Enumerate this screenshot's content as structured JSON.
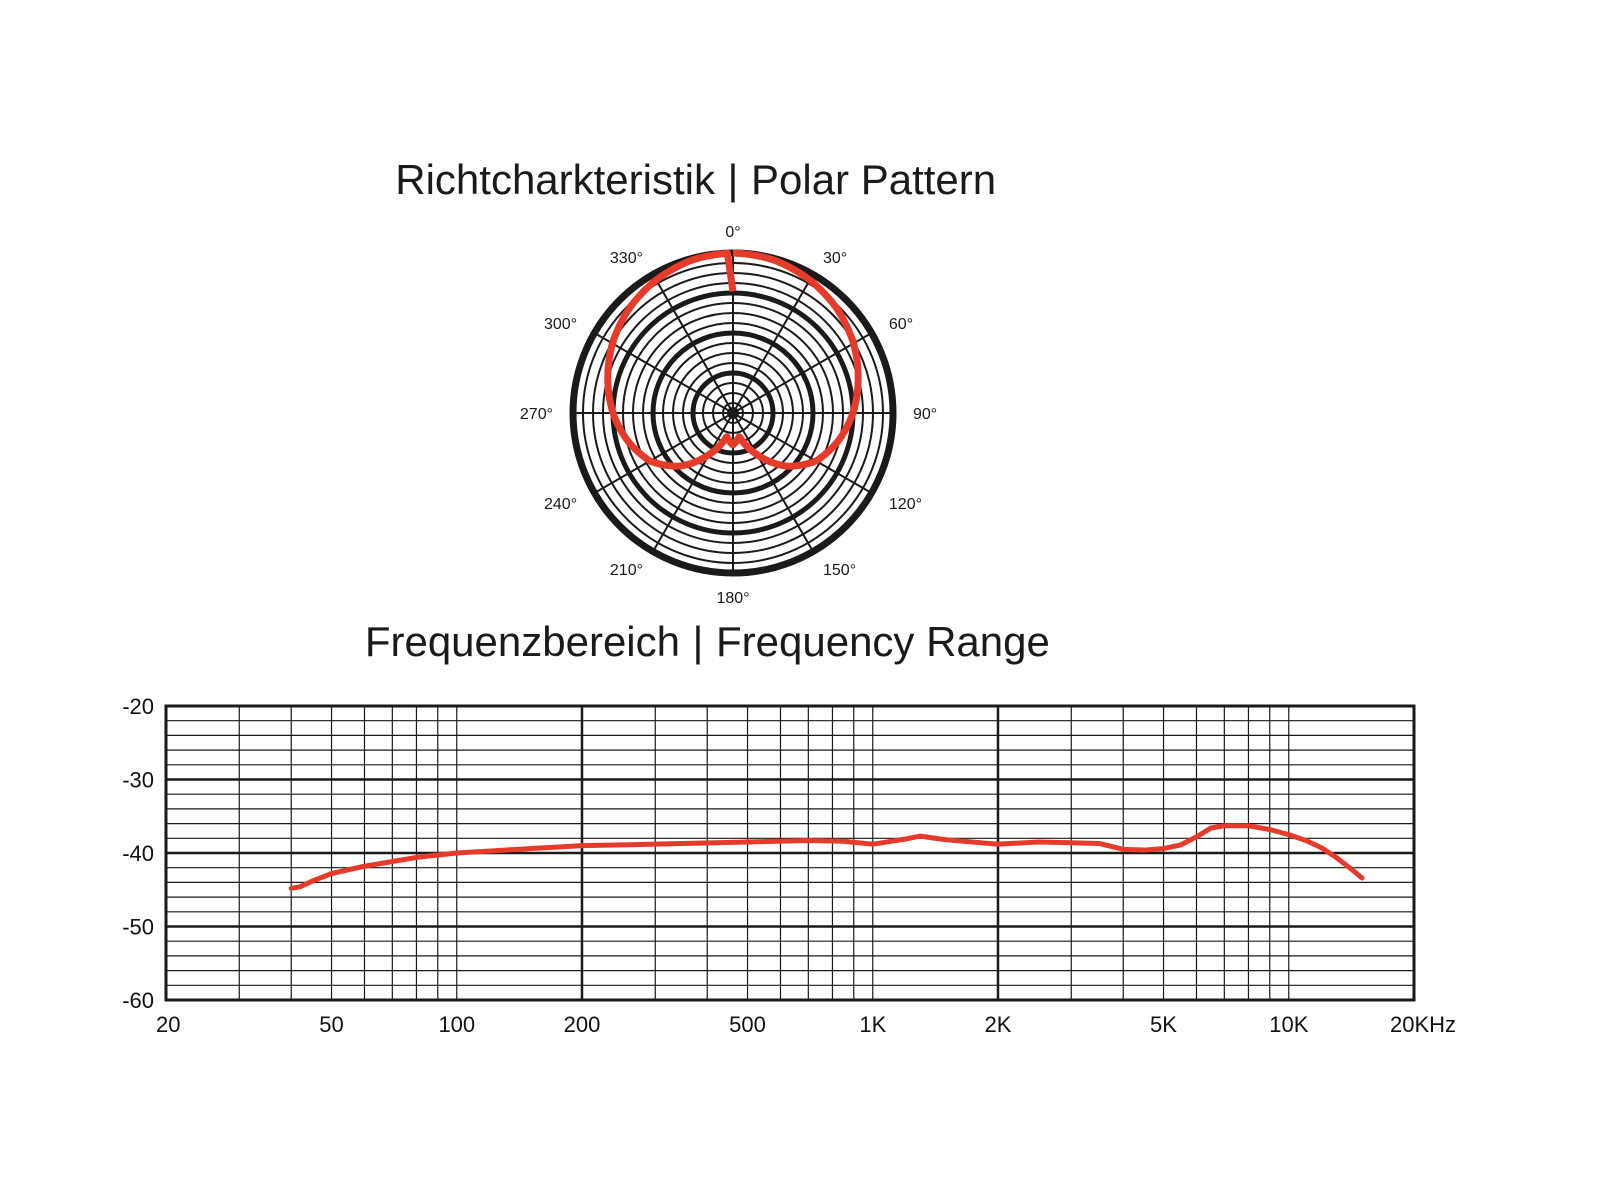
{
  "colors": {
    "curve": "#e63a2b",
    "grid": "#1a1a1a",
    "background": "#ffffff"
  },
  "polar": {
    "title_de": "Richtcharkteristik",
    "title_en": "Polar Pattern",
    "separator": "|"
  },
  "frequency": {
    "title_de": "Frequenzbereich",
    "title_en": "Frequency Range",
    "separator": "|"
  },
  "chart_data": [
    {
      "type": "line",
      "subtype": "polar",
      "pattern": "cardioid",
      "angle_labels": [
        "0°",
        "30°",
        "60°",
        "90°",
        "120°",
        "150°",
        "180°",
        "210°",
        "240°",
        "270°",
        "300°",
        "330°"
      ],
      "angles_deg": [
        0,
        30,
        60,
        90,
        120,
        150,
        180,
        210,
        240,
        270,
        300,
        330
      ],
      "series": [
        {
          "angles_deg": [
            0,
            15,
            30,
            45,
            60,
            75,
            90,
            105,
            120,
            135,
            150,
            165,
            180,
            195,
            210,
            225,
            240,
            255,
            270,
            285,
            300,
            315,
            330,
            345
          ],
          "radius_fraction": [
            1.0,
            0.99,
            0.96,
            0.92,
            0.87,
            0.81,
            0.75,
            0.68,
            0.6,
            0.47,
            0.3,
            0.15,
            0.2,
            0.15,
            0.3,
            0.47,
            0.6,
            0.68,
            0.75,
            0.81,
            0.87,
            0.92,
            0.96,
            0.99
          ]
        }
      ]
    },
    {
      "type": "line",
      "xscale": "log",
      "xlim": [
        20,
        20000
      ],
      "ylim": [
        -60,
        -20
      ],
      "xtick_values": [
        20,
        50,
        100,
        200,
        500,
        1000,
        2000,
        5000,
        10000,
        20000
      ],
      "xtick_labels": [
        "20",
        "50",
        "100",
        "200",
        "500",
        "1K",
        "2K",
        "5K",
        "10K",
        "20KHz"
      ],
      "yticks": [
        -20,
        -30,
        -40,
        -50,
        -60
      ],
      "ytick_labels": [
        "-20",
        "-30",
        "-40",
        "-50",
        "-60"
      ],
      "series": [
        {
          "x": [
            40,
            42,
            45,
            50,
            60,
            80,
            100,
            150,
            200,
            300,
            500,
            700,
            850,
            1000,
            1200,
            1300,
            1500,
            2000,
            2500,
            3000,
            3500,
            4000,
            4500,
            5000,
            5500,
            6000,
            6500,
            7000,
            8000,
            9000,
            10000,
            11000,
            12000,
            13000,
            14000,
            15000
          ],
          "y": [
            -44.8,
            -44.6,
            -43.8,
            -42.8,
            -41.8,
            -40.6,
            -40.0,
            -39.4,
            -39.0,
            -38.8,
            -38.5,
            -38.3,
            -38.4,
            -38.8,
            -38.1,
            -37.7,
            -38.2,
            -38.8,
            -38.5,
            -38.6,
            -38.7,
            -39.5,
            -39.6,
            -39.4,
            -38.9,
            -37.8,
            -36.6,
            -36.3,
            -36.3,
            -36.8,
            -37.5,
            -38.3,
            -39.3,
            -40.6,
            -42.0,
            -43.4
          ]
        }
      ]
    }
  ]
}
